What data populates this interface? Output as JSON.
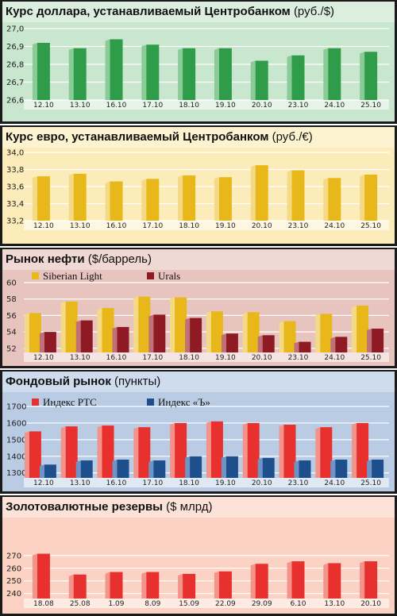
{
  "chart_data": [
    {
      "type": "bar",
      "title": "Курс доллара, устанавливаемый Центробанком",
      "unit": "(руб./$)",
      "categories": [
        "12.10",
        "13.10",
        "16.10",
        "17.10",
        "18.10",
        "19.10",
        "20.10",
        "23.10",
        "24.10",
        "25.10"
      ],
      "series": [
        {
          "values": [
            26.92,
            26.89,
            26.94,
            26.91,
            26.89,
            26.89,
            26.82,
            26.85,
            26.89,
            26.87
          ]
        }
      ],
      "yticks": [
        "27,0",
        "26,9",
        "26,8",
        "26,7",
        "26,6"
      ],
      "ylim": [
        26.6,
        27.0
      ],
      "colors": {
        "bg": "#c9e6cf",
        "header": "#dcefde",
        "front": "#2e9c48",
        "side": "#8acb97"
      }
    },
    {
      "type": "bar",
      "title": "Курс евро, устанавливаемый Центробанком",
      "unit": "(руб./€)",
      "categories": [
        "12.10",
        "13.10",
        "16.10",
        "17.10",
        "18.10",
        "19.10",
        "20.10",
        "23.10",
        "24.10",
        "25.10"
      ],
      "series": [
        {
          "values": [
            33.72,
            33.75,
            33.66,
            33.69,
            33.73,
            33.71,
            33.85,
            33.79,
            33.7,
            33.74
          ]
        }
      ],
      "yticks": [
        "34,0",
        "33,8",
        "33,6",
        "33,4",
        "33,2"
      ],
      "ylim": [
        33.2,
        34.0
      ],
      "colors": {
        "bg": "#fbecba",
        "header": "#fdf3d0",
        "front": "#e8b81a",
        "side": "#f5da86"
      }
    },
    {
      "type": "bar",
      "title": "Рынок нефти",
      "unit": "($/баррель)",
      "categories": [
        "12.10",
        "13.10",
        "16.10",
        "17.10",
        "18.10",
        "19.10",
        "20.10",
        "23.10",
        "24.10",
        "25.10"
      ],
      "series": [
        {
          "name": "Siberian Light",
          "values": [
            56.3,
            57.7,
            56.9,
            58.3,
            58.2,
            56.5,
            56.4,
            55.3,
            56.2,
            57.2
          ]
        },
        {
          "name": "Urals",
          "values": [
            54.0,
            55.4,
            54.6,
            56.1,
            55.7,
            53.8,
            53.6,
            52.8,
            53.4,
            54.4
          ]
        }
      ],
      "yticks": [
        "60",
        "58",
        "56",
        "54",
        "52"
      ],
      "ylim": [
        51.5,
        60
      ],
      "colors": {
        "bg": "#e8c4bf",
        "header": "#f0d8d4",
        "front": "#e8b81a",
        "side": "#f5da86",
        "front2": "#8e1a24",
        "side2": "#c07078"
      }
    },
    {
      "type": "bar",
      "title": "Фондовый рынок",
      "unit": "(пункты)",
      "categories": [
        "12.10",
        "13.10",
        "16.10",
        "17.10",
        "18.10",
        "19.10",
        "20.10",
        "23.10",
        "24.10",
        "25.10"
      ],
      "series": [
        {
          "name": "Индекс РТС",
          "values": [
            1550,
            1580,
            1585,
            1575,
            1600,
            1610,
            1600,
            1590,
            1575,
            1600
          ]
        },
        {
          "name": "Индекс «Ъ»",
          "values": [
            1350,
            1375,
            1380,
            1375,
            1400,
            1400,
            1390,
            1375,
            1380,
            1380
          ]
        }
      ],
      "yticks": [
        "1700",
        "1600",
        "1500",
        "1400",
        "1300"
      ],
      "ylim": [
        1270,
        1700
      ],
      "colors": {
        "bg": "#b9cce4",
        "header": "#cfdcee",
        "front": "#e8312e",
        "side": "#f4938a",
        "front2": "#1d4f8c",
        "side2": "#6f93c4"
      }
    },
    {
      "type": "bar",
      "title": "Золотовалютные резервы",
      "unit": "($ млрд)",
      "categories": [
        "18.08",
        "25.08",
        "1.09",
        "8.09",
        "15.09",
        "22.09",
        "29.09",
        "6.10",
        "13.10",
        "20.10"
      ],
      "series": [
        {
          "values": [
            271.5,
            255.0,
            257.0,
            257.0,
            255.5,
            257.5,
            263.5,
            265.5,
            264.0,
            265.5
          ]
        }
      ],
      "yticks": [
        "270",
        "260",
        "250",
        "240"
      ],
      "ylim": [
        236,
        280
      ],
      "colors": {
        "bg": "#fbd2c4",
        "header": "#fde2d8",
        "front": "#e8312e",
        "side": "#f4938a"
      }
    }
  ]
}
